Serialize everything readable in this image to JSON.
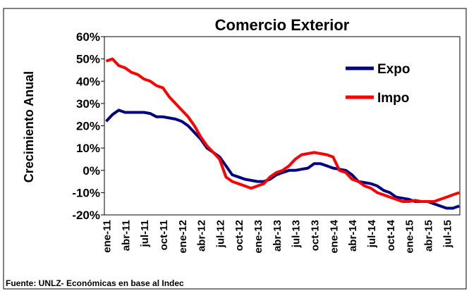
{
  "chart_data": {
    "type": "line",
    "title": "Comercio Exterior",
    "y_label": "Crecimiento Anual",
    "source": "Fuente: UNLZ- Económicas en base al Indec",
    "categories": [
      "ene-11",
      null,
      null,
      "abr-11",
      null,
      null,
      "jul-11",
      null,
      null,
      "oct-11",
      null,
      null,
      "ene-12",
      null,
      null,
      "abr-12",
      null,
      null,
      "jul-12",
      null,
      null,
      "oct-12",
      null,
      null,
      "ene-13",
      null,
      null,
      "abr-13",
      null,
      null,
      "jul-13",
      null,
      null,
      "oct-13",
      null,
      null,
      "ene-14",
      null,
      null,
      "abr-14",
      null,
      null,
      "jul-14",
      null,
      null,
      "oct-14",
      null,
      null,
      "ene-15",
      null,
      null,
      "abr-15",
      null,
      null,
      "jul-15",
      null,
      null
    ],
    "series": [
      {
        "name": "Expo",
        "color": "#000080",
        "values": [
          22,
          25,
          27,
          26,
          26,
          26,
          26,
          25.5,
          24,
          24,
          23.5,
          23,
          22,
          20,
          17,
          14,
          10,
          8,
          6,
          2,
          -2,
          -3,
          -4,
          -4.5,
          -5,
          -5,
          -4,
          -2,
          -1,
          0,
          0,
          0.5,
          1,
          3,
          3,
          2,
          1,
          0.5,
          0,
          -2,
          -5,
          -5.5,
          -6,
          -7,
          -9,
          -10,
          -12,
          -12.5,
          -13,
          -14,
          -14,
          -14,
          -15,
          -16,
          -17,
          -17,
          -16
        ]
      },
      {
        "name": "Impo",
        "color": "#ff0000",
        "values": [
          49,
          50,
          47,
          46,
          44,
          43,
          41,
          40,
          38,
          37,
          33,
          30,
          27,
          24,
          20,
          15,
          11,
          8,
          5,
          -3,
          -5,
          -6,
          -7,
          -8,
          -7,
          -6,
          -3,
          -1,
          0,
          2,
          5,
          7,
          7.5,
          8,
          7.5,
          7,
          6,
          0,
          -1,
          -4,
          -5,
          -7,
          -8,
          -10,
          -11,
          -12,
          -13,
          -14,
          -14,
          -13.5,
          -14,
          -14,
          -14,
          -13,
          -12,
          -11,
          -10
        ]
      }
    ],
    "ylim": [
      -20,
      60
    ],
    "yticks": [
      {
        "value": -20,
        "label": "-20%"
      },
      {
        "value": -10,
        "label": "-10%"
      },
      {
        "value": 0,
        "label": "0%"
      },
      {
        "value": 10,
        "label": "10%"
      },
      {
        "value": 20,
        "label": "20%"
      },
      {
        "value": 30,
        "label": "30%"
      },
      {
        "value": 40,
        "label": "40%"
      },
      {
        "value": 50,
        "label": "50%"
      },
      {
        "value": 60,
        "label": "60%"
      }
    ],
    "legend": "upper right"
  }
}
